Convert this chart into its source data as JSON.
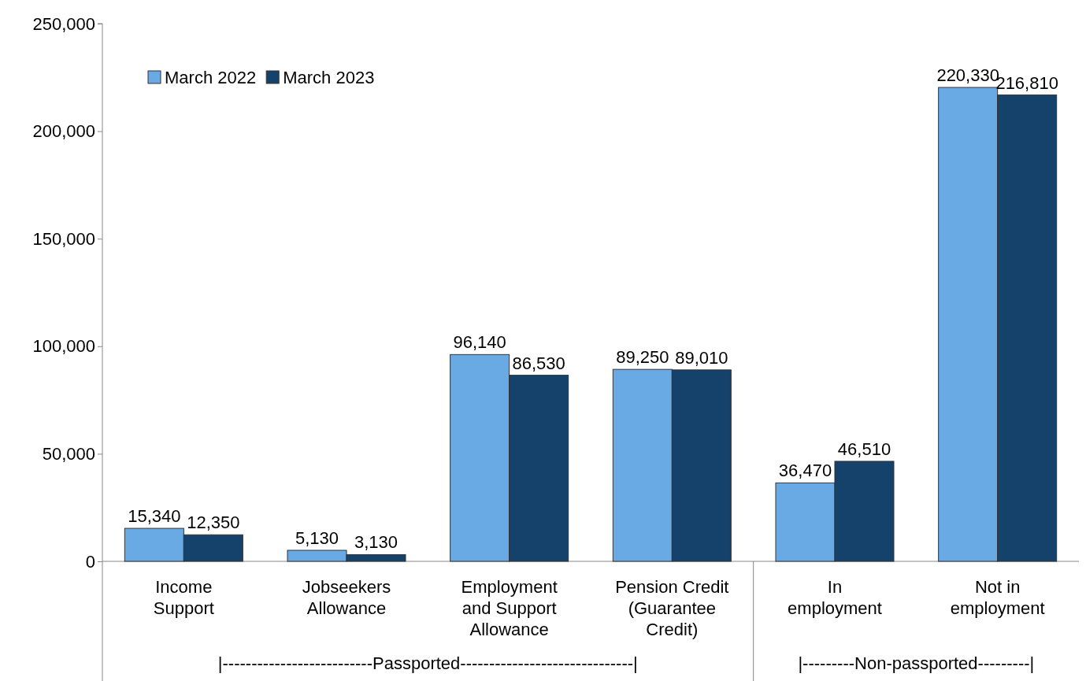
{
  "chart_data": {
    "type": "bar",
    "categories": [
      "Income\nSupport",
      "Jobseekers\nAllowance",
      "Employment\nand Support\nAllowance",
      "Pension Credit\n(Guarantee\nCredit)",
      "In\nemployment",
      "Not in\nemployment"
    ],
    "series": [
      {
        "name": "March 2022",
        "color": "#6aaae4",
        "values": [
          15340,
          5130,
          96140,
          89250,
          36470,
          220330
        ],
        "value_labels": [
          "15,340",
          "5,130",
          "96,140",
          "89,250",
          "36,470",
          "220,330"
        ]
      },
      {
        "name": "March 2023",
        "color": "#14426b",
        "values": [
          12350,
          3130,
          86530,
          89010,
          46510,
          216810
        ],
        "value_labels": [
          "12,350",
          "3,130",
          "86,530",
          "89,010",
          "46,510",
          "216,810"
        ]
      }
    ],
    "ylim": [
      0,
      250000
    ],
    "yticks": [
      {
        "value": 0,
        "label": "0"
      },
      {
        "value": 50000,
        "label": "50,000"
      },
      {
        "value": 100000,
        "label": "100,000"
      },
      {
        "value": 150000,
        "label": "150,000"
      },
      {
        "value": 200000,
        "label": "200,000"
      },
      {
        "value": 250000,
        "label": "250,000"
      }
    ],
    "legend": "top left",
    "grid": false,
    "annotations": [
      "|--------------------------Passported------------------------------|",
      "|---------Non-passported---------|"
    ]
  }
}
